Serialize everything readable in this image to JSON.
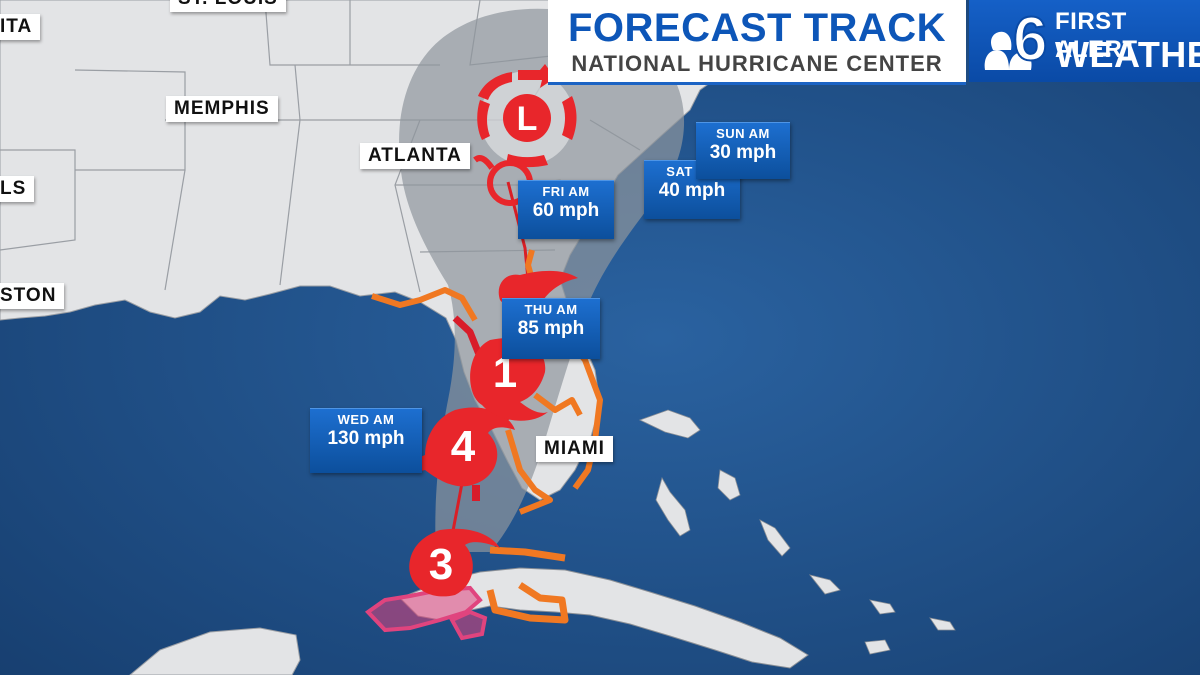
{
  "header": {
    "title": "FORECAST TRACK",
    "subtitle": "NATIONAL HURRICANE CENTER"
  },
  "brand": {
    "line1": "FIRST ALERT",
    "line2": "WEATHER",
    "logo_icon": "nbc-peacock-6-logo"
  },
  "cities": [
    {
      "id": "wichita",
      "label": "ITA"
    },
    {
      "id": "st-louis",
      "label": "ST. LOUIS"
    },
    {
      "id": "memphis",
      "label": "MEMPHIS"
    },
    {
      "id": "atlanta",
      "label": "ATLANTA"
    },
    {
      "id": "dallas",
      "label": "LS"
    },
    {
      "id": "houston",
      "label": "STON"
    },
    {
      "id": "miami",
      "label": "MIAMI"
    }
  ],
  "forecast_points": [
    {
      "day": "WED AM",
      "speed": "130 mph",
      "category": "4"
    },
    {
      "day": "THU AM",
      "speed": "85 mph",
      "category": "1"
    },
    {
      "day": "FRI AM",
      "speed": "60 mph",
      "category": ""
    },
    {
      "day": "SAT AM",
      "speed": "40 mph",
      "category": ""
    },
    {
      "day": "SUN AM",
      "speed": "30 mph",
      "category": ""
    }
  ],
  "storm_markers": [
    {
      "label": "3"
    },
    {
      "label": "4"
    },
    {
      "label": "1"
    },
    {
      "label": "L"
    }
  ],
  "colors": {
    "ocean": "#1f4f86",
    "land": "#e3e4e6",
    "cone": "#9da3ab",
    "storm": "#e8262b",
    "hurricane_warning": "#d81c2a",
    "tropical_storm_warning": "#f07822",
    "hurricane_watch": "#e0447e",
    "label_blue": "#0e55a8"
  }
}
